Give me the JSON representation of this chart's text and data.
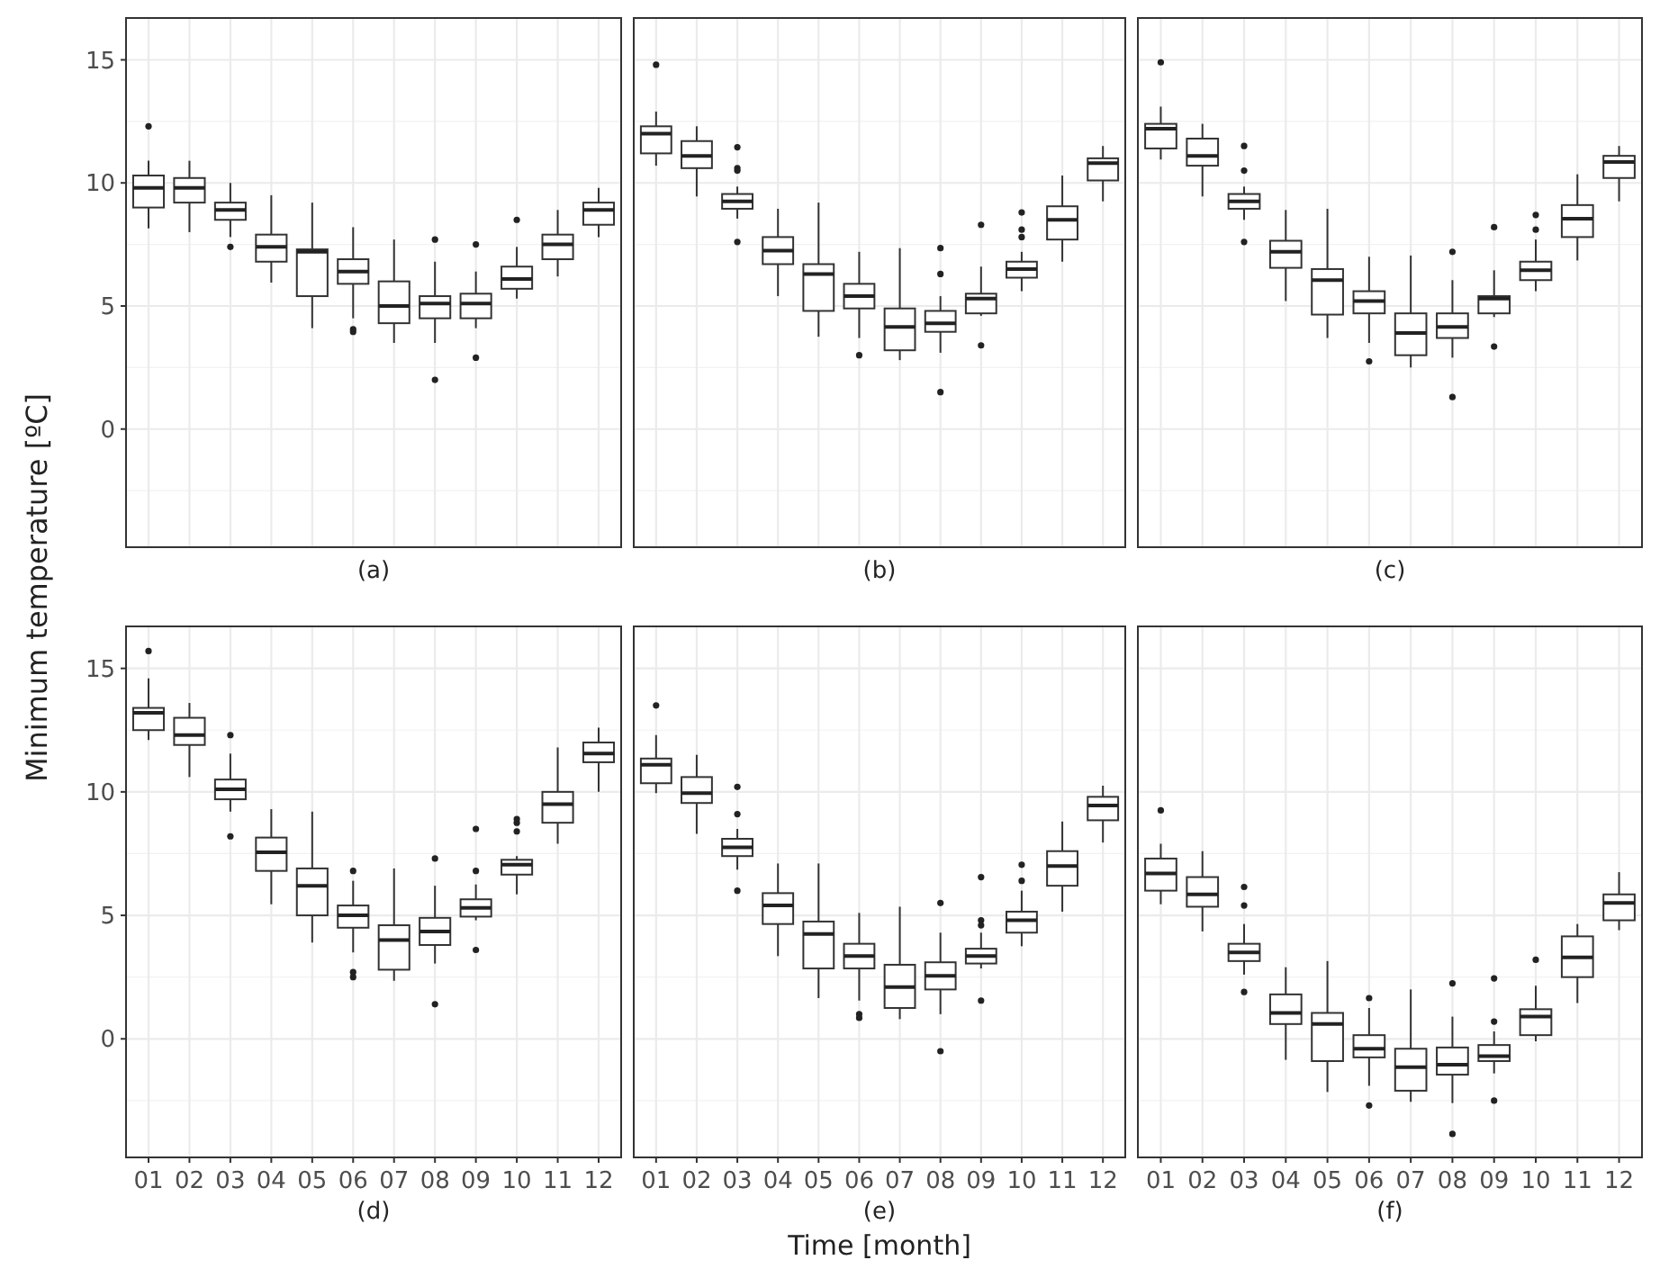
{
  "chart_data": [
    {
      "type": "box",
      "xlabel": "(a)",
      "ylabel": "Minimum temperature [ºC]",
      "categories": [
        "01",
        "02",
        "03",
        "04",
        "05",
        "06",
        "07",
        "08",
        "09",
        "10",
        "11",
        "12"
      ],
      "ylim": [
        -4.8,
        16.7
      ],
      "yticks": [
        0,
        5,
        10,
        15
      ],
      "grid": true,
      "tick_labels": "y",
      "boxes": [
        {
          "low": 8.15,
          "q1": 9.0,
          "median": 9.8,
          "q3": 10.3,
          "high": 10.9,
          "outliers": [
            12.3
          ]
        },
        {
          "low": 8.0,
          "q1": 9.2,
          "median": 9.8,
          "q3": 10.2,
          "high": 10.9
        },
        {
          "low": 7.8,
          "q1": 8.5,
          "median": 8.9,
          "q3": 9.2,
          "high": 10.0,
          "outliers": [
            7.4
          ]
        },
        {
          "low": 5.95,
          "q1": 6.8,
          "median": 7.4,
          "q3": 7.9,
          "high": 9.5
        },
        {
          "low": 4.1,
          "q1": 5.4,
          "median": 7.2,
          "q3": 7.3,
          "high": 9.2
        },
        {
          "low": 4.5,
          "q1": 5.9,
          "median": 6.4,
          "q3": 6.9,
          "high": 8.2,
          "outliers": [
            4.05,
            3.95
          ]
        },
        {
          "low": 3.5,
          "q1": 4.3,
          "median": 5.0,
          "q3": 6.0,
          "high": 7.7
        },
        {
          "low": 3.5,
          "q1": 4.5,
          "median": 5.1,
          "q3": 5.4,
          "high": 6.8,
          "outliers": [
            7.7,
            2.0
          ]
        },
        {
          "low": 4.1,
          "q1": 4.5,
          "median": 5.1,
          "q3": 5.5,
          "high": 6.4,
          "outliers": [
            7.5,
            2.9
          ]
        },
        {
          "low": 5.3,
          "q1": 5.7,
          "median": 6.1,
          "q3": 6.6,
          "high": 7.4,
          "outliers": [
            8.5
          ]
        },
        {
          "low": 6.2,
          "q1": 6.9,
          "median": 7.5,
          "q3": 7.9,
          "high": 8.9
        },
        {
          "low": 7.8,
          "q1": 8.3,
          "median": 8.9,
          "q3": 9.2,
          "high": 9.8
        }
      ]
    },
    {
      "type": "box",
      "xlabel": "(b)",
      "categories": [
        "01",
        "02",
        "03",
        "04",
        "05",
        "06",
        "07",
        "08",
        "09",
        "10",
        "11",
        "12"
      ],
      "ylim": [
        -4.8,
        16.7
      ],
      "yticks": [
        0,
        5,
        10,
        15
      ],
      "grid": true,
      "tick_labels": false,
      "boxes": [
        {
          "low": 10.7,
          "q1": 11.2,
          "median": 12.0,
          "q3": 12.3,
          "high": 12.9,
          "outliers": [
            14.8
          ]
        },
        {
          "low": 9.45,
          "q1": 10.6,
          "median": 11.1,
          "q3": 11.7,
          "high": 12.3
        },
        {
          "low": 8.55,
          "q1": 8.95,
          "median": 9.25,
          "q3": 9.55,
          "high": 9.85,
          "outliers": [
            11.45,
            10.6,
            10.5,
            7.6
          ]
        },
        {
          "low": 5.4,
          "q1": 6.7,
          "median": 7.25,
          "q3": 7.8,
          "high": 8.95
        },
        {
          "low": 3.75,
          "q1": 4.8,
          "median": 6.3,
          "q3": 6.7,
          "high": 9.2
        },
        {
          "low": 3.7,
          "q1": 4.9,
          "median": 5.4,
          "q3": 5.9,
          "high": 7.2,
          "outliers": [
            3.0
          ]
        },
        {
          "low": 2.8,
          "q1": 3.2,
          "median": 4.15,
          "q3": 4.9,
          "high": 7.35
        },
        {
          "low": 3.1,
          "q1": 3.95,
          "median": 4.3,
          "q3": 4.8,
          "high": 5.4,
          "outliers": [
            7.35,
            6.3,
            1.5
          ]
        },
        {
          "low": 4.6,
          "q1": 4.7,
          "median": 5.3,
          "q3": 5.5,
          "high": 6.6,
          "outliers": [
            8.3,
            3.4
          ]
        },
        {
          "low": 5.6,
          "q1": 6.15,
          "median": 6.5,
          "q3": 6.8,
          "high": 7.2,
          "outliers": [
            8.8,
            8.1,
            7.8
          ]
        },
        {
          "low": 6.8,
          "q1": 7.7,
          "median": 8.5,
          "q3": 9.05,
          "high": 10.3
        },
        {
          "low": 9.25,
          "q1": 10.1,
          "median": 10.8,
          "q3": 11.0,
          "high": 11.5
        }
      ]
    },
    {
      "type": "box",
      "xlabel": "(c)",
      "categories": [
        "01",
        "02",
        "03",
        "04",
        "05",
        "06",
        "07",
        "08",
        "09",
        "10",
        "11",
        "12"
      ],
      "ylim": [
        -4.8,
        16.7
      ],
      "yticks": [
        0,
        5,
        10,
        15
      ],
      "grid": true,
      "tick_labels": false,
      "boxes": [
        {
          "low": 10.95,
          "q1": 11.4,
          "median": 12.2,
          "q3": 12.4,
          "high": 13.1,
          "outliers": [
            14.9
          ]
        },
        {
          "low": 9.45,
          "q1": 10.7,
          "median": 11.1,
          "q3": 11.8,
          "high": 12.4
        },
        {
          "low": 8.5,
          "q1": 8.95,
          "median": 9.25,
          "q3": 9.55,
          "high": 9.85,
          "outliers": [
            11.5,
            10.5,
            7.6
          ]
        },
        {
          "low": 5.2,
          "q1": 6.55,
          "median": 7.2,
          "q3": 7.65,
          "high": 8.9
        },
        {
          "low": 3.7,
          "q1": 4.65,
          "median": 6.05,
          "q3": 6.5,
          "high": 8.95
        },
        {
          "low": 3.5,
          "q1": 4.7,
          "median": 5.2,
          "q3": 5.6,
          "high": 7.0,
          "outliers": [
            2.75
          ]
        },
        {
          "low": 2.5,
          "q1": 3.0,
          "median": 3.9,
          "q3": 4.7,
          "high": 7.05
        },
        {
          "low": 2.9,
          "q1": 3.7,
          "median": 4.15,
          "q3": 4.7,
          "high": 6.05,
          "outliers": [
            7.2,
            1.3
          ]
        },
        {
          "low": 4.55,
          "q1": 4.7,
          "median": 5.3,
          "q3": 5.4,
          "high": 6.45,
          "outliers": [
            8.2,
            3.35
          ]
        },
        {
          "low": 5.6,
          "q1": 6.05,
          "median": 6.45,
          "q3": 6.8,
          "high": 7.7,
          "outliers": [
            8.7,
            8.1
          ]
        },
        {
          "low": 6.85,
          "q1": 7.8,
          "median": 8.55,
          "q3": 9.1,
          "high": 10.35
        },
        {
          "low": 9.25,
          "q1": 10.2,
          "median": 10.85,
          "q3": 11.1,
          "high": 11.5
        }
      ]
    },
    {
      "type": "box",
      "xlabel": "(d)",
      "categories": [
        "01",
        "02",
        "03",
        "04",
        "05",
        "06",
        "07",
        "08",
        "09",
        "10",
        "11",
        "12"
      ],
      "ylim": [
        -4.8,
        16.7
      ],
      "yticks": [
        0,
        5,
        10,
        15
      ],
      "grid": true,
      "boxes": [
        {
          "low": 12.1,
          "q1": 12.5,
          "median": 13.2,
          "q3": 13.4,
          "high": 14.6,
          "outliers": [
            15.7
          ]
        },
        {
          "low": 10.6,
          "q1": 11.9,
          "median": 12.3,
          "q3": 13.0,
          "high": 13.6
        },
        {
          "low": 9.2,
          "q1": 9.7,
          "median": 10.1,
          "q3": 10.5,
          "high": 11.55,
          "outliers": [
            12.3,
            8.2
          ]
        },
        {
          "low": 5.45,
          "q1": 6.8,
          "median": 7.55,
          "q3": 8.15,
          "high": 9.3
        },
        {
          "low": 3.9,
          "q1": 5.0,
          "median": 6.2,
          "q3": 6.9,
          "high": 9.2
        },
        {
          "low": 3.5,
          "q1": 4.5,
          "median": 5.0,
          "q3": 5.4,
          "high": 6.4,
          "outliers": [
            6.8,
            2.7,
            2.5
          ]
        },
        {
          "low": 2.35,
          "q1": 2.8,
          "median": 4.0,
          "q3": 4.6,
          "high": 6.9
        },
        {
          "low": 3.05,
          "q1": 3.8,
          "median": 4.35,
          "q3": 4.9,
          "high": 6.2,
          "outliers": [
            7.3,
            1.4
          ]
        },
        {
          "low": 4.8,
          "q1": 4.95,
          "median": 5.3,
          "q3": 5.65,
          "high": 6.25,
          "outliers": [
            8.5,
            6.8,
            3.6
          ]
        },
        {
          "low": 5.85,
          "q1": 6.65,
          "median": 7.05,
          "q3": 7.25,
          "high": 7.4,
          "outliers": [
            8.9,
            8.75,
            8.4
          ]
        },
        {
          "low": 7.9,
          "q1": 8.75,
          "median": 9.5,
          "q3": 10.0,
          "high": 11.8
        },
        {
          "low": 10.0,
          "q1": 11.2,
          "median": 11.55,
          "q3": 12.0,
          "high": 12.6
        }
      ]
    },
    {
      "type": "box",
      "xlabel": "(e)",
      "annotations": [
        "Time [month]"
      ],
      "categories": [
        "01",
        "02",
        "03",
        "04",
        "05",
        "06",
        "07",
        "08",
        "09",
        "10",
        "11",
        "12"
      ],
      "ylim": [
        -4.8,
        16.7
      ],
      "yticks": [
        0,
        5,
        10,
        15
      ],
      "grid": true,
      "tick_labels": "x",
      "boxes": [
        {
          "low": 9.95,
          "q1": 10.35,
          "median": 11.1,
          "q3": 11.35,
          "high": 12.3,
          "outliers": [
            13.5
          ]
        },
        {
          "low": 8.3,
          "q1": 9.55,
          "median": 9.95,
          "q3": 10.6,
          "high": 11.5
        },
        {
          "low": 6.85,
          "q1": 7.4,
          "median": 7.75,
          "q3": 8.1,
          "high": 8.5,
          "outliers": [
            10.2,
            9.1,
            6.0
          ]
        },
        {
          "low": 3.35,
          "q1": 4.65,
          "median": 5.4,
          "q3": 5.9,
          "high": 7.1
        },
        {
          "low": 1.65,
          "q1": 2.85,
          "median": 4.25,
          "q3": 4.75,
          "high": 7.1
        },
        {
          "low": 1.55,
          "q1": 2.85,
          "median": 3.35,
          "q3": 3.85,
          "high": 5.1,
          "outliers": [
            1.0,
            0.85
          ]
        },
        {
          "low": 0.8,
          "q1": 1.25,
          "median": 2.1,
          "q3": 3.0,
          "high": 5.35
        },
        {
          "low": 1.0,
          "q1": 2.0,
          "median": 2.55,
          "q3": 3.1,
          "high": 4.3,
          "outliers": [
            5.5,
            -0.5
          ]
        },
        {
          "low": 2.85,
          "q1": 3.05,
          "median": 3.35,
          "q3": 3.65,
          "high": 4.3,
          "outliers": [
            6.55,
            4.8,
            4.6,
            1.55
          ]
        },
        {
          "low": 3.75,
          "q1": 4.3,
          "median": 4.8,
          "q3": 5.15,
          "high": 6.0,
          "outliers": [
            7.05,
            6.4
          ]
        },
        {
          "low": 5.15,
          "q1": 6.2,
          "median": 7.0,
          "q3": 7.6,
          "high": 8.8
        },
        {
          "low": 7.95,
          "q1": 8.85,
          "median": 9.45,
          "q3": 9.8,
          "high": 10.25
        }
      ]
    },
    {
      "type": "box",
      "xlabel": "(f)",
      "categories": [
        "01",
        "02",
        "03",
        "04",
        "05",
        "06",
        "07",
        "08",
        "09",
        "10",
        "11",
        "12"
      ],
      "ylim": [
        -4.8,
        16.7
      ],
      "yticks": [
        0,
        5,
        10,
        15
      ],
      "grid": true,
      "tick_labels": "x",
      "boxes": [
        {
          "low": 5.45,
          "q1": 6.0,
          "median": 6.7,
          "q3": 7.3,
          "high": 7.9,
          "outliers": [
            9.25
          ]
        },
        {
          "low": 4.35,
          "q1": 5.35,
          "median": 5.85,
          "q3": 6.55,
          "high": 7.6
        },
        {
          "low": 2.6,
          "q1": 3.15,
          "median": 3.5,
          "q3": 3.85,
          "high": 4.65,
          "outliers": [
            6.15,
            5.4,
            1.9
          ]
        },
        {
          "low": -0.85,
          "q1": 0.6,
          "median": 1.05,
          "q3": 1.8,
          "high": 2.9
        },
        {
          "low": -2.15,
          "q1": -0.9,
          "median": 0.6,
          "q3": 1.05,
          "high": 3.15
        },
        {
          "low": -1.9,
          "q1": -0.75,
          "median": -0.4,
          "q3": 0.15,
          "high": 1.25,
          "outliers": [
            1.65,
            -2.7
          ]
        },
        {
          "low": -2.55,
          "q1": -2.1,
          "median": -1.15,
          "q3": -0.4,
          "high": 2.0
        },
        {
          "low": -2.6,
          "q1": -1.45,
          "median": -1.05,
          "q3": -0.35,
          "high": 0.9,
          "outliers": [
            2.25,
            -3.85
          ]
        },
        {
          "low": -1.4,
          "q1": -0.9,
          "median": -0.7,
          "q3": -0.25,
          "high": 0.3,
          "outliers": [
            2.45,
            0.7,
            -2.5
          ]
        },
        {
          "low": -0.1,
          "q1": 0.15,
          "median": 0.9,
          "q3": 1.2,
          "high": 2.15,
          "outliers": [
            3.2
          ]
        },
        {
          "low": 1.45,
          "q1": 2.5,
          "median": 3.3,
          "q3": 4.15,
          "high": 4.65
        },
        {
          "low": 4.4,
          "q1": 4.8,
          "median": 5.5,
          "q3": 5.85,
          "high": 6.75
        }
      ]
    }
  ]
}
